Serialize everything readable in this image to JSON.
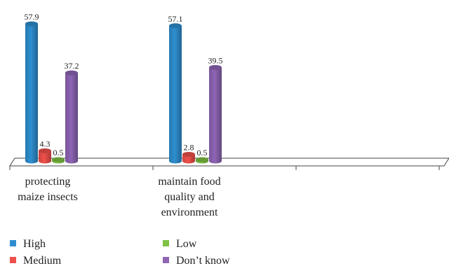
{
  "chart_data": {
    "type": "bar",
    "categories": [
      "protecting\nmaize insects",
      "maintain food\nquality and\nenvironment"
    ],
    "series": [
      {
        "name": "High",
        "color": "#2E8FD0",
        "values": [
          57.9,
          57.1
        ]
      },
      {
        "name": "Medium",
        "color": "#F0504A",
        "values": [
          4.3,
          2.8
        ]
      },
      {
        "name": "Low",
        "color": "#7DC243",
        "values": [
          0.5,
          0.5
        ]
      },
      {
        "name": "Don’t know",
        "color": "#8E65B5",
        "values": [
          37.2,
          39.5
        ]
      }
    ],
    "ylim": [
      0,
      60
    ],
    "grid": false,
    "legend_position": "bottom-left",
    "data_labels": true
  }
}
